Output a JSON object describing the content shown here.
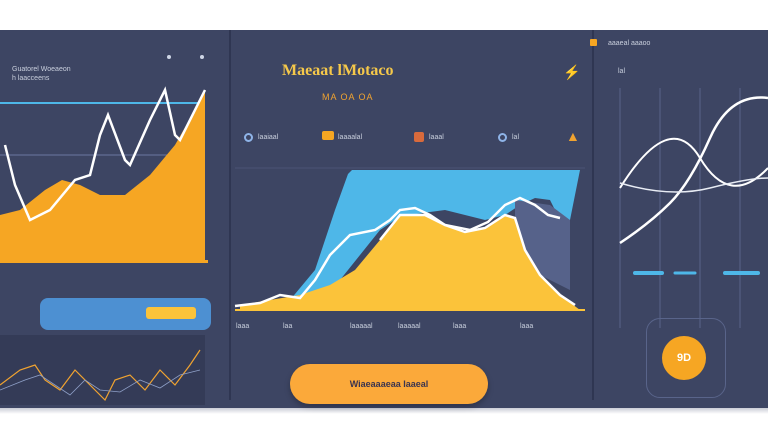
{
  "header": {
    "title": "Maeaat lMotaco",
    "subtitle": "MA OA OA"
  },
  "left_panel": {
    "label_top": "Guatorel Woeaeon",
    "label_sub": "h laacceens"
  },
  "legend": [
    {
      "label": "laaiaal"
    },
    {
      "label": "laaaalal"
    },
    {
      "label": "laaal"
    },
    {
      "label": "lal"
    }
  ],
  "x_axis_labels": [
    "laaa",
    "laa",
    "laaaaal",
    "laaaaal",
    "laaa",
    "laaa"
  ],
  "right_panel": {
    "top_label": "aaaeal aaaoo",
    "small_label": "lal"
  },
  "action_button": {
    "label": "Wiaeaaaeaa Iaaeal"
  },
  "badge": {
    "label": "9D"
  },
  "colors": {
    "background": "#3d4563",
    "orange": "#f6a623",
    "yellow": "#fbc33a",
    "blue": "#4eb7e8",
    "line": "#ffffff"
  },
  "icons": [
    "pin-icon",
    "bolt-icon",
    "flame-icon",
    "briefcase-icon",
    "dot-icon"
  ]
}
